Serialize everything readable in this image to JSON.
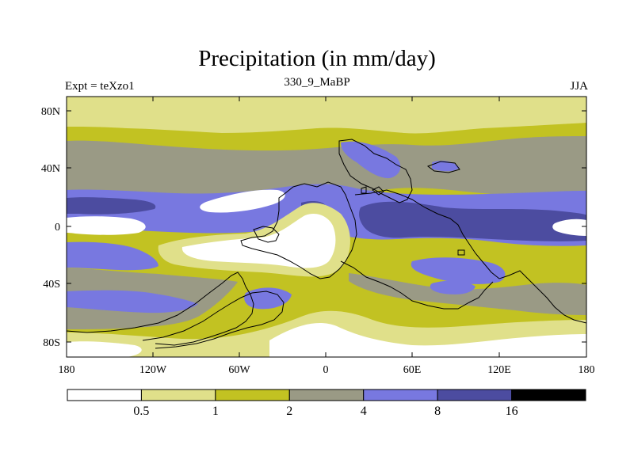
{
  "title": "Precipitation (in mm/day)",
  "left_label": "Expt = teXzo1",
  "center_label": "330_9_MaBP",
  "right_label": "JJA",
  "colors": {
    "lt_0_5": "#ffffff",
    "c_0_5_1": "#e0e08a",
    "c_1_2": "#c2c222",
    "c_2_4": "#9a9a85",
    "c_4_8": "#7878e0",
    "c_8_16": "#4c4ca0",
    "gt_16": "#000000"
  },
  "map": {
    "lat_ticks": [
      "80N",
      "40N",
      "0",
      "40S",
      "80S"
    ],
    "lon_ticks": [
      "180",
      "120W",
      "60W",
      "0",
      "60E",
      "120E",
      "180"
    ]
  },
  "colorbar": {
    "labels": [
      "0.5",
      "1",
      "2",
      "4",
      "8",
      "16"
    ]
  }
}
